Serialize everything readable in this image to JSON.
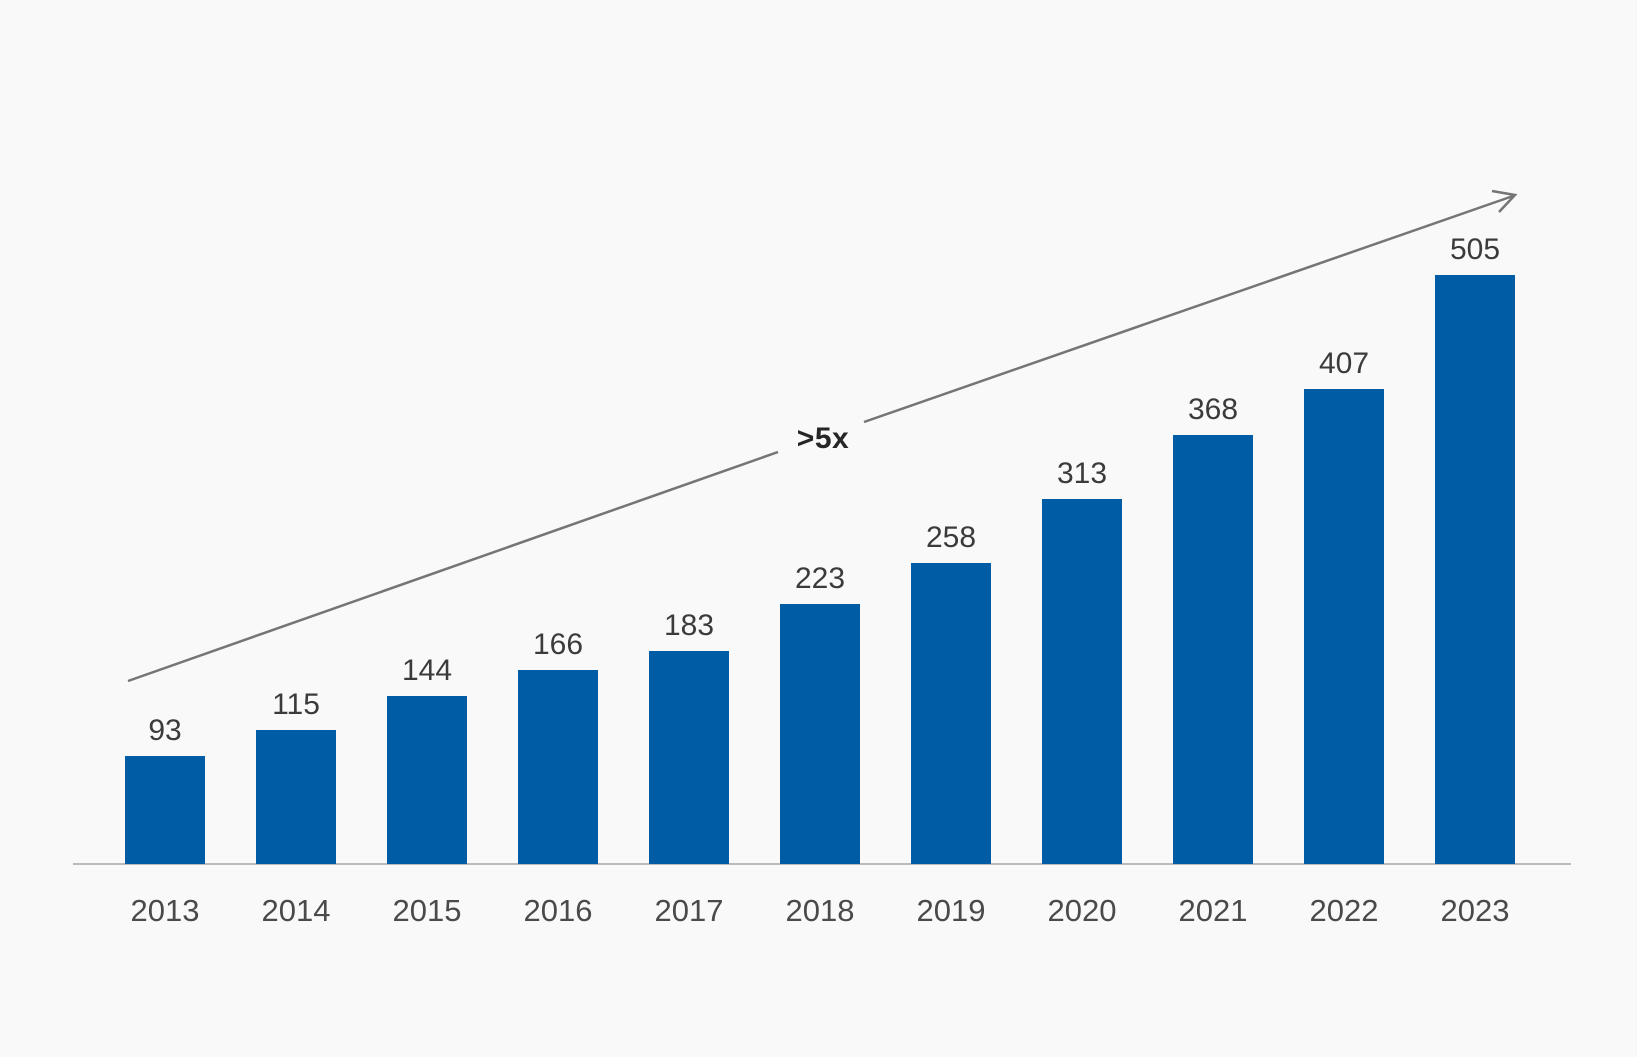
{
  "chart_data": {
    "type": "bar",
    "title": "",
    "xlabel": "",
    "ylabel": "",
    "categories": [
      "2013",
      "2014",
      "2015",
      "2016",
      "2017",
      "2018",
      "2019",
      "2020",
      "2021",
      "2022",
      "2023"
    ],
    "values": [
      93,
      115,
      144,
      166,
      183,
      223,
      258,
      313,
      368,
      407,
      505
    ],
    "ylim": [
      0,
      520
    ],
    "grid": false,
    "legend": false,
    "bar_color": "#005CA4",
    "background_color": "#F9F9F9",
    "axis_line_color": "#BBBBBB",
    "value_label_color": "#3B3B3B",
    "category_label_color": "#4A4A4A",
    "annotation": {
      "label": ">5x",
      "color": "#262626",
      "arrow_color": "#757575"
    }
  }
}
